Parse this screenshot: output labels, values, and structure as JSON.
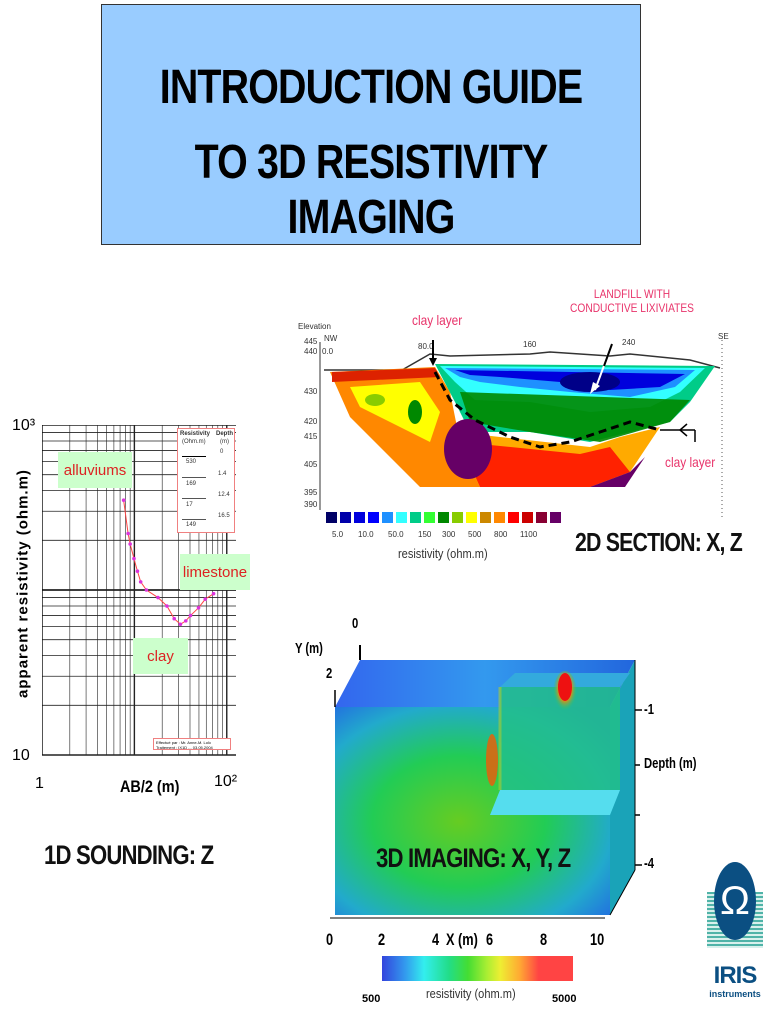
{
  "title": {
    "line1": "INTRODUCTION GUIDE",
    "line2": "TO 3D RESISTIVITY IMAGING",
    "background": "#99ccff"
  },
  "sounding_1d": {
    "caption": "1D SOUNDING: Z",
    "y_label": "apparent resistivity (ohm.m)",
    "x_label": "AB/2 (m)",
    "y_ticks": [
      "10³",
      "10"
    ],
    "x_ticks": [
      "1",
      "10²"
    ],
    "labels": {
      "alluviums": "alluviums",
      "limestone": "limestone",
      "clay": "clay"
    },
    "legend_table": {
      "headers": [
        "Resistivity",
        "Depth"
      ],
      "units": [
        "(Ohm.m)",
        "(m)"
      ],
      "resistivity": [
        "530",
        "169",
        "17",
        "149"
      ],
      "depth": [
        "0",
        "1.4",
        "12.4",
        "16.5"
      ]
    },
    "footnote": [
      "Effectué par : Mr. Anne-M. Loïc",
      "Traitement : IX1D ... 03.05.2004"
    ]
  },
  "section_2d": {
    "caption": "2D SECTION: X, Z",
    "elevation_label": "Elevation",
    "elevation_ticks": [
      "445",
      "440",
      "430",
      "420",
      "415",
      "405",
      "395",
      "390"
    ],
    "direction_left": "NW",
    "direction_right": "SE",
    "distance_ticks": [
      "0.0",
      "80.0",
      "160",
      "240"
    ],
    "annotations": {
      "clay_top": "clay layer",
      "landfill": [
        "LANDFILL WITH",
        "CONDUCTIVE LIXIVIATES"
      ],
      "clay_right": "clay layer"
    },
    "colorbar_colors": [
      "#000066",
      "#0000aa",
      "#0000dd",
      "#0000ff",
      "#1e90ff",
      "#33ffff",
      "#00cc88",
      "#33ff33",
      "#008800",
      "#88cc00",
      "#ffff00",
      "#cc8800",
      "#ff8800",
      "#ff0000",
      "#cc0000",
      "#880033",
      "#660066"
    ],
    "colorbar_labels": [
      "5.0",
      "10.0",
      "50.0",
      "150",
      "300",
      "500",
      "800",
      "1100"
    ],
    "colorbar_title": "resistivity (ohm.m)"
  },
  "imaging_3d": {
    "caption": "3D IMAGING: X, Y, Z",
    "y_axis_label": "Y (m)",
    "y_ticks": [
      "0",
      "2"
    ],
    "depth_label": "Depth (m)",
    "depth_ticks": [
      "-1",
      "-4"
    ],
    "x_axis_label": "X (m)",
    "x_ticks": [
      "0",
      "2",
      "4",
      "6",
      "8",
      "10"
    ],
    "colorbar_min": "500",
    "colorbar_max": "5000",
    "colorbar_title": "resistivity (ohm.m)"
  },
  "logo": {
    "symbol": "Ω",
    "name": "IRIS",
    "sub": "instruments",
    "color": "#0b4f82"
  }
}
